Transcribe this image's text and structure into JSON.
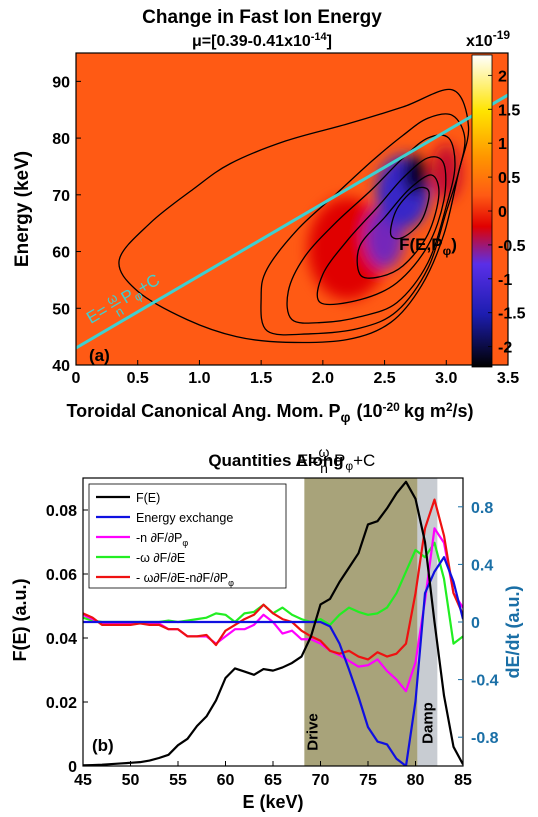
{
  "colors": {
    "heatmap_background": "#ff5a14",
    "contour": "#000000",
    "resonance_line": "#3fd0d0",
    "drive_region": "#a8a37a",
    "damp_region": "#c8ccd2",
    "right_axis": "#1a6fa6",
    "series_fe": "#000000",
    "series_energy_exchange": "#1010e0",
    "series_n_dfdp": "#ff00ff",
    "series_omega_dfde": "#22ee22",
    "series_total": "#ee1111"
  },
  "chart_data": [
    {
      "type": "heatmap",
      "title": "Change in Fast Ion Energy",
      "subtitle_prefix": "μ=[0.39-0.41x10",
      "subtitle_exp": "-14",
      "subtitle_suffix": "]",
      "panel_label": "(a)",
      "xlabel_main": "Toroidal Canonical Ang. Mom. P",
      "xlabel_sub": "φ",
      "xlabel_units_pre": "(10",
      "xlabel_units_exp1": "-20",
      "xlabel_units_mid": "kg m",
      "xlabel_units_exp2": "2",
      "xlabel_units_post": "/s)",
      "ylabel": "Energy (keV)",
      "xlim": [
        0,
        3.5
      ],
      "ylim": [
        40,
        95
      ],
      "xticks": [
        "0",
        "0.5",
        "1.0",
        "1.5",
        "2.0",
        "2.5",
        "3.0",
        "3.5"
      ],
      "xtick_values": [
        0,
        0.5,
        1.0,
        1.5,
        2.0,
        2.5,
        3.0,
        3.5
      ],
      "yticks": [
        "40",
        "50",
        "60",
        "70",
        "80",
        "90"
      ],
      "ytick_values": [
        40,
        50,
        60,
        70,
        80,
        90
      ],
      "colorbar": {
        "range": [
          -2.3,
          2.3
        ],
        "multiplier_base": "x10",
        "multiplier_exp": "-19",
        "ticks": [
          "2",
          "1.5",
          "1",
          "0.5",
          "0",
          "-0.5",
          "-1",
          "-1.5",
          "-2"
        ],
        "tick_values": [
          2,
          1.5,
          1,
          0.5,
          0,
          -0.5,
          -1,
          -1.5,
          -2
        ]
      },
      "resonance_line": {
        "label_lhs": "E=",
        "label_num": "ω",
        "label_den": "n",
        "label_rhs_main": "P",
        "label_rhs_sub": "φ",
        "label_rhs_post": "+C",
        "endpoints": [
          [
            0,
            43
          ],
          [
            3.5,
            87.6
          ]
        ]
      },
      "contour_label_main": "F(E,P",
      "contour_label_sub": "φ",
      "contour_label_post": ")",
      "blobs": [
        {
          "x": 2.75,
          "y": 73.5,
          "rx": 0.1,
          "ry": 3.5,
          "value": -2.2
        },
        {
          "x": 2.65,
          "y": 70.5,
          "rx": 0.22,
          "ry": 6.5,
          "value": -1.2
        },
        {
          "x": 2.5,
          "y": 62.5,
          "rx": 0.16,
          "ry": 5.5,
          "value": -0.7
        },
        {
          "x": 2.2,
          "y": 60.5,
          "rx": 0.32,
          "ry": 9,
          "value": -0.3
        },
        {
          "x": 3.0,
          "y": 74,
          "rx": 0.12,
          "ry": 5,
          "value": -0.4
        }
      ],
      "contours": [
        {
          "level": 1,
          "points": [
            [
              1.55,
              46
            ],
            [
              1.5,
              52
            ],
            [
              1.55,
              57
            ],
            [
              1.8,
              64
            ],
            [
              2.1,
              70
            ],
            [
              2.4,
              76
            ],
            [
              2.65,
              80.5
            ],
            [
              2.85,
              83.5
            ],
            [
              3.05,
              84
            ],
            [
              3.15,
              80
            ],
            [
              3.1,
              74
            ],
            [
              3.0,
              67
            ],
            [
              2.85,
              57
            ],
            [
              2.6,
              49.5
            ],
            [
              2.3,
              46.5
            ],
            [
              1.9,
              45.5
            ]
          ]
        },
        {
          "level": 2,
          "points": [
            [
              1.75,
              48
            ],
            [
              1.72,
              53
            ],
            [
              1.85,
              59
            ],
            [
              2.1,
              65
            ],
            [
              2.4,
              71
            ],
            [
              2.65,
              76.5
            ],
            [
              2.85,
              80
            ],
            [
              3.02,
              80
            ],
            [
              3.07,
              75
            ],
            [
              3.0,
              68
            ],
            [
              2.85,
              58
            ],
            [
              2.6,
              51
            ],
            [
              2.3,
              48.5
            ],
            [
              2.0,
              47.5
            ]
          ]
        },
        {
          "level": 3,
          "points": [
            [
              1.98,
              51
            ],
            [
              2.0,
              56
            ],
            [
              2.2,
              62
            ],
            [
              2.45,
              68
            ],
            [
              2.65,
              73
            ],
            [
              2.85,
              76.5
            ],
            [
              2.98,
              75.5
            ],
            [
              2.98,
              69
            ],
            [
              2.85,
              61
            ],
            [
              2.6,
              54.5
            ],
            [
              2.3,
              51.5
            ]
          ]
        },
        {
          "level": 4,
          "points": [
            [
              2.3,
              56
            ],
            [
              2.3,
              61
            ],
            [
              2.5,
              66
            ],
            [
              2.7,
              71
            ],
            [
              2.88,
              73.5
            ],
            [
              2.94,
              70
            ],
            [
              2.85,
              63
            ],
            [
              2.65,
              57.5
            ],
            [
              2.45,
              55.5
            ]
          ]
        },
        {
          "level": 5,
          "points": [
            [
              2.55,
              63
            ],
            [
              2.6,
              67.5
            ],
            [
              2.75,
              71
            ],
            [
              2.86,
              70.5
            ],
            [
              2.8,
              65.5
            ],
            [
              2.65,
              62.5
            ]
          ]
        },
        {
          "level": 0,
          "points": [
            [
              0.35,
              58.5
            ],
            [
              0.6,
              65
            ],
            [
              0.95,
              71
            ],
            [
              1.25,
              75.5
            ],
            [
              1.7,
              79.5
            ],
            [
              2.2,
              82.5
            ],
            [
              2.65,
              85.5
            ],
            [
              3.05,
              88.5
            ],
            [
              3.18,
              82
            ],
            [
              3.1,
              74
            ],
            [
              2.98,
              63
            ],
            [
              2.8,
              54
            ],
            [
              2.55,
              47.5
            ],
            [
              2.2,
              44.5
            ],
            [
              1.7,
              44
            ],
            [
              1.3,
              45
            ],
            [
              0.9,
              48
            ],
            [
              0.5,
              53
            ]
          ]
        }
      ]
    },
    {
      "type": "line",
      "title_prefix": "Quantities Along",
      "title_formula_lhs": "E=",
      "title_formula_num": "ω",
      "title_formula_den": "n",
      "title_formula_rhs": "P",
      "title_formula_sub": "φ",
      "title_formula_post": "+C",
      "panel_label": "(b)",
      "xlabel": "E (keV)",
      "ylabel_left": "F(E) (a.u.)",
      "ylabel_right": "dE/dt (a.u.)",
      "xlim": [
        45,
        85
      ],
      "ylim_left": [
        0,
        0.09
      ],
      "ylim_right": [
        -1.0,
        1.0
      ],
      "xticks": [
        "45",
        "50",
        "55",
        "60",
        "65",
        "70",
        "75",
        "80",
        "85"
      ],
      "xtick_values": [
        45,
        50,
        55,
        60,
        65,
        70,
        75,
        80,
        85
      ],
      "yticks_left": [
        "0",
        "0.02",
        "0.04",
        "0.06",
        "0.08"
      ],
      "ytick_values_left": [
        0,
        0.02,
        0.04,
        0.06,
        0.08
      ],
      "yticks_right": [
        "0.8",
        "0.4",
        "0",
        "-0.4",
        "-0.8"
      ],
      "ytick_values_right": [
        0.8,
        0.4,
        0,
        -0.4,
        -0.8
      ],
      "regions": [
        {
          "label": "Drive",
          "x0": 68.3,
          "x1": 80.2
        },
        {
          "label": "Damp",
          "x0": 80.2,
          "x1": 82.3
        }
      ],
      "legend": [
        "F(E)",
        "Energy exchange",
        "-n ∂F/∂P",
        "-ω ∂F/∂E",
        "- ω∂F/∂E-n∂F/∂P"
      ],
      "legend_sub_indices": [
        2,
        4
      ],
      "legend_sub": "φ",
      "series": [
        {
          "name": "F(E)",
          "axis": "left",
          "x": [
            45,
            46,
            47,
            48,
            49,
            50,
            51,
            52,
            53,
            54,
            55,
            56,
            57,
            58,
            59,
            60,
            61,
            62,
            63,
            64,
            65,
            66,
            67,
            68,
            69,
            70,
            71,
            72,
            73,
            74,
            75,
            76,
            77,
            78,
            79,
            80,
            81,
            82,
            83,
            84,
            85
          ],
          "y": [
            0.0002,
            0.0003,
            0.0004,
            0.0006,
            0.0008,
            0.001,
            0.0012,
            0.0017,
            0.0025,
            0.0035,
            0.0065,
            0.0085,
            0.0125,
            0.0155,
            0.0205,
            0.0275,
            0.0305,
            0.0295,
            0.0285,
            0.0303,
            0.0298,
            0.0308,
            0.0322,
            0.0342,
            0.0405,
            0.0505,
            0.0522,
            0.0575,
            0.062,
            0.0665,
            0.0755,
            0.0765,
            0.0805,
            0.0852,
            0.0888,
            0.0835,
            0.07,
            0.045,
            0.022,
            0.006,
            0.0005
          ]
        },
        {
          "name": "Energy exchange",
          "axis": "right",
          "x": [
            45,
            46,
            47,
            48,
            49,
            50,
            51,
            52,
            53,
            54,
            55,
            56,
            57,
            58,
            59,
            60,
            61,
            62,
            63,
            64,
            65,
            66,
            67,
            68,
            69,
            70,
            71,
            72,
            73,
            74,
            75,
            76,
            77,
            78,
            79,
            80,
            81,
            82,
            83,
            84,
            85
          ],
          "y": [
            0,
            0,
            0,
            0,
            0,
            0,
            0,
            0,
            0,
            0,
            0,
            0,
            0,
            0,
            0,
            0,
            0,
            0,
            0,
            0,
            0,
            0,
            0,
            0,
            0,
            0,
            -0.03,
            -0.15,
            -0.33,
            -0.52,
            -0.73,
            -0.83,
            -0.85,
            -0.95,
            -1.0,
            -0.55,
            0.2,
            0.35,
            0.45,
            0.28,
            0.02
          ]
        },
        {
          "name": "-n ∂F/∂P",
          "axis": "right",
          "x": [
            45,
            46,
            47,
            48,
            49,
            50,
            51,
            52,
            53,
            54,
            55,
            56,
            57,
            58,
            59,
            60,
            61,
            62,
            63,
            64,
            65,
            66,
            67,
            68,
            69,
            70,
            71,
            72,
            73,
            74,
            75,
            76,
            77,
            78,
            79,
            80,
            81,
            82,
            83,
            84,
            85
          ],
          "y": [
            0.05,
            0.02,
            -0.01,
            -0.01,
            -0.01,
            -0.01,
            0,
            -0.01,
            -0.01,
            -0.05,
            -0.05,
            -0.1,
            -0.1,
            -0.1,
            -0.15,
            -0.1,
            -0.05,
            -0.05,
            -0.02,
            0.05,
            0.0,
            -0.08,
            -0.06,
            -0.12,
            -0.12,
            -0.15,
            -0.2,
            -0.23,
            -0.27,
            -0.31,
            -0.3,
            -0.26,
            -0.34,
            -0.4,
            -0.48,
            -0.28,
            0.15,
            0.65,
            0.55,
            0.2,
            0.1
          ]
        },
        {
          "name": "-ω ∂F/∂E",
          "axis": "right",
          "x": [
            45,
            46,
            47,
            48,
            49,
            50,
            51,
            52,
            53,
            54,
            55,
            56,
            57,
            58,
            59,
            60,
            61,
            62,
            63,
            64,
            65,
            66,
            67,
            68,
            69,
            70,
            71,
            72,
            73,
            74,
            75,
            76,
            77,
            78,
            79,
            80,
            81,
            82,
            83,
            84,
            85
          ],
          "y": [
            0.03,
            0.01,
            0.0,
            0.0,
            0.0,
            0.0,
            0.0,
            0.0,
            0.0,
            0.01,
            0.0,
            0.01,
            0.02,
            0.03,
            0.06,
            0.05,
            0.0,
            0.06,
            0.07,
            0.12,
            0.06,
            0.1,
            0.05,
            0.02,
            0.0,
            0.02,
            -0.02,
            0.05,
            0.1,
            0.07,
            0.05,
            0.06,
            0.1,
            0.2,
            0.35,
            0.5,
            0.45,
            0.55,
            0.3,
            -0.15,
            -0.1
          ]
        },
        {
          "name": "- ω∂F/∂E-n∂F/∂P",
          "axis": "right",
          "x": [
            45,
            46,
            47,
            48,
            49,
            50,
            51,
            52,
            53,
            54,
            55,
            56,
            57,
            58,
            59,
            60,
            61,
            62,
            63,
            64,
            65,
            66,
            67,
            68,
            69,
            70,
            71,
            72,
            73,
            74,
            75,
            76,
            77,
            78,
            79,
            80,
            81,
            82,
            83,
            84,
            85
          ],
          "y": [
            0.06,
            0.03,
            -0.02,
            -0.02,
            -0.02,
            -0.02,
            -0.01,
            -0.02,
            -0.02,
            -0.05,
            -0.05,
            -0.1,
            -0.1,
            -0.09,
            -0.16,
            -0.06,
            -0.02,
            0.02,
            0.05,
            0.12,
            0.06,
            0.02,
            0.0,
            -0.06,
            -0.1,
            -0.13,
            -0.2,
            -0.22,
            -0.2,
            -0.24,
            -0.26,
            -0.21,
            -0.24,
            -0.22,
            -0.15,
            0.2,
            0.65,
            0.85,
            0.6,
            0.2,
            0.05
          ]
        }
      ]
    }
  ]
}
